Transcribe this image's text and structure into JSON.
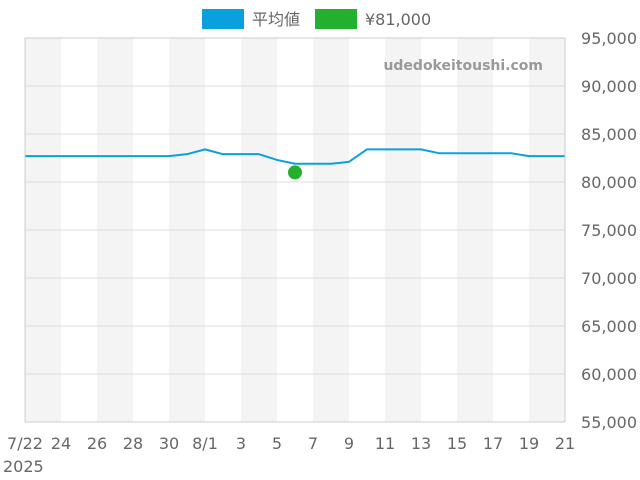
{
  "watermark": "udedokeitoushi.com",
  "chart_data": {
    "type": "line",
    "x": [
      "7/22",
      "7/23",
      "7/24",
      "7/25",
      "7/26",
      "7/27",
      "7/28",
      "7/29",
      "7/30",
      "7/31",
      "8/1",
      "8/2",
      "8/3",
      "8/4",
      "8/5",
      "8/6",
      "8/7",
      "8/8",
      "8/9",
      "8/10",
      "8/11",
      "8/12",
      "8/13",
      "8/14",
      "8/15",
      "8/16",
      "8/17",
      "8/18",
      "8/19",
      "8/20",
      "8/21"
    ],
    "x_tick_labels": [
      "7/22",
      "24",
      "26",
      "28",
      "30",
      "8/1",
      "3",
      "5",
      "7",
      "9",
      "11",
      "13",
      "15",
      "17",
      "19",
      "21"
    ],
    "x_year_label": "2025",
    "series": [
      {
        "name": "平均値",
        "color": "#0aa0e0",
        "values": [
          82700,
          82700,
          82700,
          82700,
          82700,
          82700,
          82700,
          82700,
          82700,
          82900,
          83400,
          82900,
          82900,
          82900,
          82300,
          81900,
          81900,
          81900,
          82100,
          83400,
          83400,
          83400,
          83400,
          83000,
          83000,
          83000,
          83000,
          83000,
          82700,
          82700,
          82700
        ]
      },
      {
        "name": "¥81,000",
        "color": "#22b02e",
        "points": [
          {
            "x": "8/6",
            "y": 81000
          }
        ]
      }
    ],
    "ylim": [
      55000,
      95000
    ],
    "y_ticks": [
      55000,
      60000,
      65000,
      70000,
      75000,
      80000,
      85000,
      90000,
      95000
    ],
    "y_tick_labels": [
      "55,000",
      "60,000",
      "65,000",
      "70,000",
      "75,000",
      "80,000",
      "85,000",
      "90,000",
      "95,000"
    ],
    "y_axis_side": "right",
    "grid": true,
    "legend_position": "top-center",
    "title": "",
    "xlabel": "",
    "ylabel": ""
  }
}
